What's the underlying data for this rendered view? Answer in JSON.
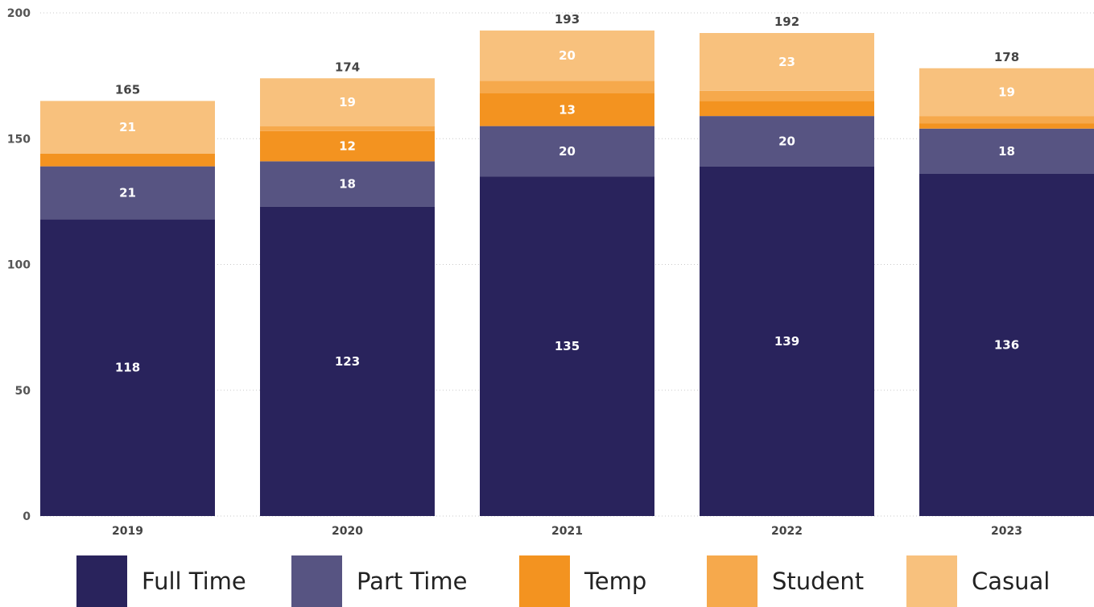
{
  "chart_data": {
    "type": "bar",
    "stacked": true,
    "categories": [
      "2019",
      "2020",
      "2021",
      "2022",
      "2023"
    ],
    "series": [
      {
        "name": "Full Time",
        "color": "#29235c",
        "values": [
          118,
          123,
          135,
          139,
          136
        ],
        "labels": [
          "118",
          "123",
          "135",
          "139",
          "136"
        ]
      },
      {
        "name": "Part Time",
        "color": "#575482",
        "values": [
          21,
          18,
          20,
          20,
          18
        ],
        "labels": [
          "21",
          "18",
          "20",
          "20",
          "18"
        ]
      },
      {
        "name": "Temp",
        "color": "#f39320",
        "values": [
          5,
          12,
          13,
          6,
          2
        ],
        "labels": [
          "",
          "12",
          "13",
          "",
          ""
        ]
      },
      {
        "name": "Student",
        "color": "#f6a94c",
        "values": [
          0,
          2,
          5,
          4,
          3
        ],
        "labels": [
          "",
          "",
          "",
          "",
          ""
        ]
      },
      {
        "name": "Casual",
        "color": "#f8c17d",
        "values": [
          21,
          19,
          20,
          23,
          19
        ],
        "labels": [
          "21",
          "19",
          "20",
          "23",
          "19"
        ]
      }
    ],
    "totals": [
      "165",
      "174",
      "193",
      "192",
      "178"
    ],
    "yticks": [
      "0",
      "50",
      "100",
      "150",
      "200"
    ],
    "ylim": [
      0,
      200
    ],
    "grid": true,
    "legend_position": "bottom"
  }
}
